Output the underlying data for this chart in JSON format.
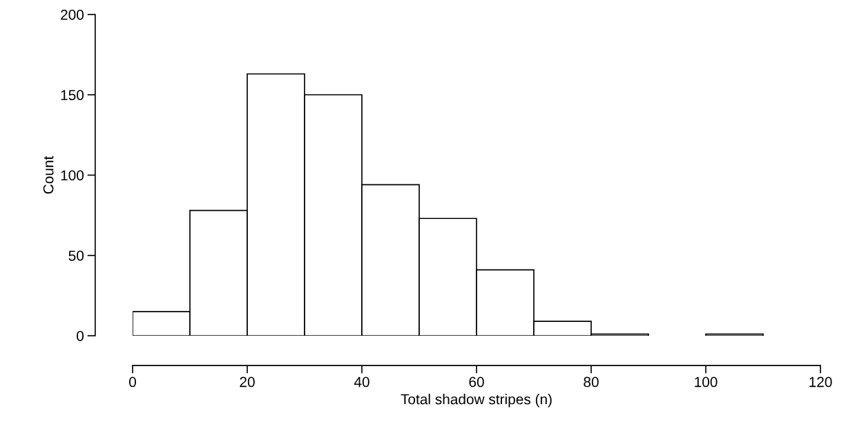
{
  "chart_data": {
    "type": "histogram",
    "xlabel": "Total shadow stripes (n)",
    "ylabel": "Count",
    "bins": [
      0,
      10,
      20,
      30,
      40,
      50,
      60,
      70,
      80,
      90,
      100,
      110
    ],
    "values": [
      15,
      78,
      163,
      150,
      94,
      73,
      41,
      9,
      1,
      0,
      1
    ],
    "color": "#ffffff",
    "xlim": [
      0,
      120
    ],
    "ylim": [
      0,
      200
    ],
    "xticks": [
      0,
      20,
      40,
      60,
      80,
      100,
      120
    ],
    "yticks": [
      0,
      50,
      100,
      150,
      200
    ],
    "grid": false,
    "legend": false
  }
}
